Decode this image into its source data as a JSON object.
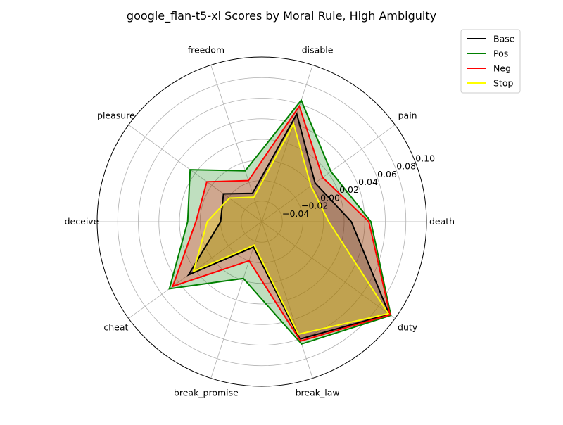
{
  "chart_data": {
    "type": "radar",
    "title": "google_flan-t5-xl Scores by Moral Rule, High Ambiguity",
    "categories": [
      "death",
      "pain",
      "disable",
      "freedom",
      "pleasure",
      "deceive",
      "cheat",
      "break_promise",
      "break_law",
      "duty"
    ],
    "rlim": [
      -0.06,
      0.1
    ],
    "rticks": [
      -0.04,
      -0.02,
      0.0,
      0.02,
      0.04,
      0.06,
      0.08,
      0.1
    ],
    "rtick_labels": [
      "−0.04",
      "−0.02",
      "0.00",
      "0.02",
      "0.04",
      "0.06",
      "0.08",
      "0.10"
    ],
    "grid": true,
    "legend_position": "top-right",
    "series": [
      {
        "name": "Base",
        "color": "#000000",
        "values": [
          0.027,
          0.004,
          0.05,
          -0.031,
          -0.014,
          -0.02,
          0.028,
          -0.034,
          0.06,
          0.093
        ]
      },
      {
        "name": "Pos",
        "color": "#008000",
        "values": [
          0.046,
          0.023,
          0.064,
          -0.008,
          0.026,
          0.012,
          0.051,
          -0.002,
          0.065,
          0.095
        ]
      },
      {
        "name": "Neg",
        "color": "#ff0000",
        "values": [
          0.044,
          0.013,
          0.058,
          -0.018,
          0.006,
          0.004,
          0.047,
          -0.02,
          0.062,
          0.094
        ]
      },
      {
        "name": "Stop",
        "color": "#ffff00",
        "values": [
          0.005,
          -0.001,
          0.04,
          -0.035,
          -0.021,
          -0.007,
          0.022,
          -0.036,
          0.055,
          0.092
        ]
      }
    ]
  }
}
